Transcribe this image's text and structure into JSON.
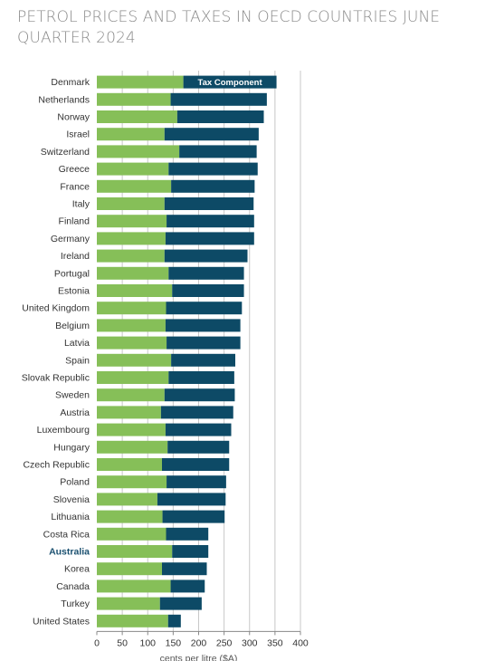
{
  "title": "PETROL PRICES AND TAXES IN OECD COUNTRIES JUNE QUARTER 2024",
  "colors": {
    "tax": "#0d4a66",
    "base": "#86bf58",
    "grid": "#c8c8c8",
    "highlight": "#1a5070"
  },
  "chart_data": {
    "type": "bar",
    "orientation": "horizontal",
    "stacked": true,
    "xlabel": "cents per litre ($A)",
    "xlim": [
      0,
      400
    ],
    "xticks": [
      0,
      50,
      100,
      150,
      200,
      250,
      300,
      350,
      400
    ],
    "highlight": "Australia",
    "legend": [
      "Tax Component"
    ],
    "legend_position": "inside-top",
    "categories": [
      "Denmark",
      "Netherlands",
      "Norway",
      "Israel",
      "Switzerland",
      "Greece",
      "France",
      "Italy",
      "Finland",
      "Germany",
      "Ireland",
      "Portugal",
      "Estonia",
      "United Kingdom",
      "Belgium",
      "Latvia",
      "Spain",
      "Slovak Republic",
      "Sweden",
      "Austria",
      "Luxembourg",
      "Hungary",
      "Czech Republic",
      "Poland",
      "Slovenia",
      "Lithuania",
      "Costa Rica",
      "Australia",
      "Korea",
      "Canada",
      "Turkey",
      "United States"
    ],
    "series": [
      {
        "values": [
          170,
          145,
          158,
          133,
          162,
          141,
          146,
          133,
          137,
          135,
          133,
          141,
          148,
          136,
          135,
          137,
          146,
          141,
          133,
          126,
          135,
          139,
          128,
          137,
          119,
          129,
          136,
          148,
          128,
          145,
          124,
          140
        ]
      },
      {
        "name": "Tax Component",
        "values": [
          183,
          189,
          170,
          185,
          152,
          175,
          164,
          175,
          172,
          174,
          163,
          148,
          141,
          149,
          147,
          145,
          126,
          129,
          138,
          142,
          129,
          121,
          132,
          117,
          134,
          122,
          83,
          71,
          88,
          67,
          82,
          25
        ]
      }
    ]
  }
}
